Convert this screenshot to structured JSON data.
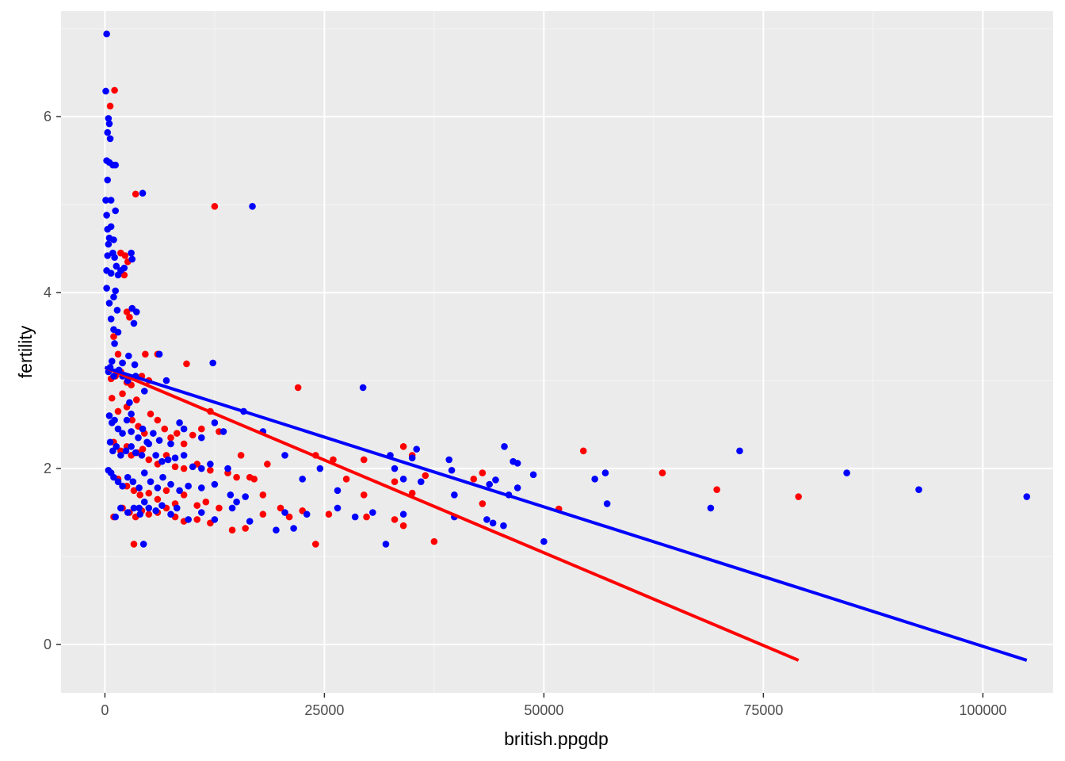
{
  "chart_data": {
    "type": "scatter",
    "xlabel": "british.ppgdp",
    "ylabel": "fertility",
    "xlim": [
      -5000,
      108000
    ],
    "ylim": [
      -0.55,
      7.2
    ],
    "x_ticks": [
      0,
      25000,
      50000,
      75000,
      100000
    ],
    "x_tick_labels": [
      "0",
      "25000",
      "50000",
      "75000",
      "100000"
    ],
    "y_ticks": [
      0,
      2,
      4,
      6
    ],
    "y_tick_labels": [
      "0",
      "2",
      "4",
      "6"
    ],
    "grid": true,
    "legend": "none",
    "series": [
      {
        "color": "#ff0000",
        "points": [
          [
            600,
            6.12
          ],
          [
            1100,
            6.3
          ],
          [
            12500,
            4.98
          ],
          [
            1800,
            4.45
          ],
          [
            2300,
            4.42
          ],
          [
            2600,
            4.35
          ],
          [
            2200,
            4.2
          ],
          [
            2500,
            3.78
          ],
          [
            2800,
            3.72
          ],
          [
            3100,
            3.82
          ],
          [
            1000,
            3.5
          ],
          [
            1500,
            3.3
          ],
          [
            2000,
            3.2
          ],
          [
            3500,
            5.12
          ],
          [
            4600,
            3.3
          ],
          [
            6000,
            3.3
          ],
          [
            9300,
            3.19
          ],
          [
            22000,
            2.92
          ],
          [
            700,
            3.02
          ],
          [
            1200,
            3.05
          ],
          [
            1800,
            3.1
          ],
          [
            2500,
            2.98
          ],
          [
            3000,
            2.95
          ],
          [
            3600,
            2.78
          ],
          [
            4200,
            3.05
          ],
          [
            5000,
            3.0
          ],
          [
            800,
            2.8
          ],
          [
            1500,
            2.65
          ],
          [
            2000,
            2.85
          ],
          [
            2500,
            2.7
          ],
          [
            3100,
            2.55
          ],
          [
            3800,
            2.48
          ],
          [
            4500,
            2.4
          ],
          [
            5200,
            2.62
          ],
          [
            6000,
            2.55
          ],
          [
            6800,
            2.45
          ],
          [
            7500,
            2.35
          ],
          [
            8200,
            2.4
          ],
          [
            9000,
            2.28
          ],
          [
            10000,
            2.38
          ],
          [
            11000,
            2.45
          ],
          [
            12000,
            2.65
          ],
          [
            13000,
            2.42
          ],
          [
            1000,
            2.3
          ],
          [
            1800,
            2.2
          ],
          [
            2500,
            2.25
          ],
          [
            3000,
            2.15
          ],
          [
            3700,
            2.18
          ],
          [
            4300,
            2.22
          ],
          [
            5000,
            2.1
          ],
          [
            6000,
            2.05
          ],
          [
            7000,
            2.15
          ],
          [
            8000,
            2.02
          ],
          [
            9000,
            2.0
          ],
          [
            10500,
            2.05
          ],
          [
            12000,
            1.98
          ],
          [
            14000,
            1.95
          ],
          [
            15500,
            2.15
          ],
          [
            16500,
            1.9
          ],
          [
            18500,
            2.05
          ],
          [
            24000,
            2.15
          ],
          [
            26000,
            2.1
          ],
          [
            29500,
            2.1
          ],
          [
            34000,
            2.25
          ],
          [
            35000,
            2.15
          ],
          [
            36500,
            1.92
          ],
          [
            42000,
            1.88
          ],
          [
            43000,
            1.95
          ],
          [
            54500,
            2.2
          ],
          [
            63500,
            1.95
          ],
          [
            69700,
            1.76
          ],
          [
            1500,
            1.88
          ],
          [
            2500,
            1.8
          ],
          [
            3300,
            1.75
          ],
          [
            4000,
            1.7
          ],
          [
            5000,
            1.72
          ],
          [
            6000,
            1.65
          ],
          [
            7000,
            1.75
          ],
          [
            8000,
            1.6
          ],
          [
            9000,
            1.7
          ],
          [
            10500,
            1.58
          ],
          [
            11500,
            1.62
          ],
          [
            13000,
            1.55
          ],
          [
            15000,
            1.9
          ],
          [
            17000,
            1.88
          ],
          [
            18000,
            1.7
          ],
          [
            20000,
            1.55
          ],
          [
            22500,
            1.52
          ],
          [
            25500,
            1.48
          ],
          [
            27500,
            1.88
          ],
          [
            29500,
            1.7
          ],
          [
            33000,
            1.85
          ],
          [
            35000,
            1.72
          ],
          [
            43000,
            1.6
          ],
          [
            51700,
            1.54
          ],
          [
            79000,
            1.68
          ],
          [
            1000,
            1.45
          ],
          [
            2000,
            1.55
          ],
          [
            2800,
            1.5
          ],
          [
            3500,
            1.45
          ],
          [
            4200,
            1.52
          ],
          [
            5000,
            1.48
          ],
          [
            6000,
            1.5
          ],
          [
            7000,
            1.55
          ],
          [
            8000,
            1.45
          ],
          [
            9000,
            1.4
          ],
          [
            10500,
            1.42
          ],
          [
            12000,
            1.38
          ],
          [
            14500,
            1.3
          ],
          [
            16000,
            1.32
          ],
          [
            18000,
            1.48
          ],
          [
            21000,
            1.45
          ],
          [
            24000,
            1.14
          ],
          [
            29800,
            1.45
          ],
          [
            33000,
            1.42
          ],
          [
            34000,
            1.35
          ],
          [
            37500,
            1.17
          ],
          [
            3300,
            1.14
          ]
        ],
        "fit_line": [
          [
            0,
            3.15
          ],
          [
            79000,
            -0.18
          ]
        ]
      },
      {
        "color": "#0000ff",
        "points": [
          [
            200,
            6.94
          ],
          [
            100,
            6.29
          ],
          [
            400,
            5.98
          ],
          [
            500,
            5.92
          ],
          [
            300,
            5.82
          ],
          [
            600,
            5.75
          ],
          [
            200,
            5.5
          ],
          [
            500,
            5.48
          ],
          [
            900,
            5.45
          ],
          [
            1200,
            5.45
          ],
          [
            4300,
            5.13
          ],
          [
            16800,
            4.98
          ],
          [
            300,
            5.28
          ],
          [
            700,
            5.05
          ],
          [
            100,
            5.05
          ],
          [
            200,
            4.88
          ],
          [
            300,
            4.72
          ],
          [
            500,
            4.62
          ],
          [
            700,
            4.75
          ],
          [
            1000,
            4.6
          ],
          [
            1200,
            4.93
          ],
          [
            400,
            4.55
          ],
          [
            300,
            4.42
          ],
          [
            900,
            4.45
          ],
          [
            1100,
            4.4
          ],
          [
            3100,
            4.38
          ],
          [
            3000,
            4.45
          ],
          [
            200,
            4.25
          ],
          [
            700,
            4.22
          ],
          [
            1300,
            4.3
          ],
          [
            1500,
            4.2
          ],
          [
            1800,
            4.25
          ],
          [
            2200,
            4.28
          ],
          [
            200,
            4.05
          ],
          [
            500,
            3.88
          ],
          [
            1000,
            3.95
          ],
          [
            1200,
            4.02
          ],
          [
            700,
            3.7
          ],
          [
            1400,
            3.8
          ],
          [
            3100,
            3.82
          ],
          [
            3600,
            3.78
          ],
          [
            3300,
            3.65
          ],
          [
            1000,
            3.58
          ],
          [
            1500,
            3.55
          ],
          [
            1100,
            3.42
          ],
          [
            2700,
            3.28
          ],
          [
            2000,
            3.2
          ],
          [
            3400,
            3.18
          ],
          [
            6200,
            3.3
          ],
          [
            12300,
            3.2
          ],
          [
            29400,
            2.92
          ],
          [
            7000,
            3.0
          ],
          [
            400,
            3.1
          ],
          [
            600,
            3.15
          ],
          [
            800,
            3.22
          ],
          [
            1000,
            3.05
          ],
          [
            1300,
            3.1
          ],
          [
            1600,
            3.12
          ],
          [
            2000,
            3.05
          ],
          [
            2600,
            3.0
          ],
          [
            3500,
            3.05
          ],
          [
            4500,
            2.88
          ],
          [
            2800,
            2.75
          ],
          [
            3000,
            2.62
          ],
          [
            15800,
            2.65
          ],
          [
            18000,
            2.42
          ],
          [
            500,
            2.6
          ],
          [
            800,
            2.52
          ],
          [
            1100,
            2.55
          ],
          [
            1500,
            2.45
          ],
          [
            2000,
            2.4
          ],
          [
            2500,
            2.55
          ],
          [
            3000,
            2.42
          ],
          [
            3800,
            2.35
          ],
          [
            4300,
            2.45
          ],
          [
            4800,
            2.3
          ],
          [
            5500,
            2.4
          ],
          [
            6200,
            2.32
          ],
          [
            7500,
            2.28
          ],
          [
            8500,
            2.52
          ],
          [
            9000,
            2.45
          ],
          [
            11000,
            2.35
          ],
          [
            12500,
            2.52
          ],
          [
            13500,
            2.42
          ],
          [
            600,
            2.3
          ],
          [
            900,
            2.2
          ],
          [
            1300,
            2.25
          ],
          [
            1800,
            2.15
          ],
          [
            2400,
            2.2
          ],
          [
            3000,
            2.25
          ],
          [
            3500,
            2.18
          ],
          [
            4200,
            2.15
          ],
          [
            5000,
            2.28
          ],
          [
            5800,
            2.15
          ],
          [
            6500,
            2.08
          ],
          [
            7200,
            2.1
          ],
          [
            8000,
            2.12
          ],
          [
            9000,
            2.15
          ],
          [
            10000,
            2.02
          ],
          [
            11000,
            2.0
          ],
          [
            12000,
            2.05
          ],
          [
            14000,
            2.0
          ],
          [
            20500,
            2.15
          ],
          [
            24500,
            2.0
          ],
          [
            32500,
            2.15
          ],
          [
            35000,
            2.12
          ],
          [
            35500,
            2.22
          ],
          [
            39200,
            2.1
          ],
          [
            45500,
            2.25
          ],
          [
            46500,
            2.08
          ],
          [
            47000,
            2.06
          ],
          [
            48800,
            1.93
          ],
          [
            55800,
            1.88
          ],
          [
            57000,
            1.95
          ],
          [
            72300,
            2.2
          ],
          [
            84500,
            1.95
          ],
          [
            92700,
            1.76
          ],
          [
            105000,
            1.68
          ],
          [
            400,
            1.98
          ],
          [
            700,
            1.95
          ],
          [
            1000,
            1.9
          ],
          [
            1500,
            1.85
          ],
          [
            2000,
            1.8
          ],
          [
            2600,
            1.9
          ],
          [
            3200,
            1.85
          ],
          [
            3900,
            1.78
          ],
          [
            4500,
            1.95
          ],
          [
            5200,
            1.85
          ],
          [
            6000,
            1.78
          ],
          [
            6600,
            1.9
          ],
          [
            7500,
            1.82
          ],
          [
            8500,
            1.75
          ],
          [
            9500,
            1.8
          ],
          [
            11000,
            1.78
          ],
          [
            12500,
            1.82
          ],
          [
            14300,
            1.7
          ],
          [
            16000,
            1.68
          ],
          [
            22500,
            1.88
          ],
          [
            26500,
            1.75
          ],
          [
            33000,
            2.0
          ],
          [
            34000,
            1.88
          ],
          [
            36000,
            1.85
          ],
          [
            39500,
            1.98
          ],
          [
            43800,
            1.82
          ],
          [
            44500,
            1.87
          ],
          [
            47000,
            1.78
          ],
          [
            46000,
            1.7
          ],
          [
            39800,
            1.7
          ],
          [
            1200,
            1.45
          ],
          [
            1800,
            1.55
          ],
          [
            2600,
            1.5
          ],
          [
            3300,
            1.55
          ],
          [
            4000,
            1.48
          ],
          [
            4500,
            1.62
          ],
          [
            5000,
            1.55
          ],
          [
            5800,
            1.52
          ],
          [
            6500,
            1.58
          ],
          [
            7500,
            1.48
          ],
          [
            8200,
            1.55
          ],
          [
            9500,
            1.42
          ],
          [
            11000,
            1.5
          ],
          [
            12500,
            1.42
          ],
          [
            14500,
            1.55
          ],
          [
            15000,
            1.62
          ],
          [
            16500,
            1.4
          ],
          [
            19500,
            1.3
          ],
          [
            20500,
            1.5
          ],
          [
            21500,
            1.32
          ],
          [
            23000,
            1.48
          ],
          [
            26500,
            1.55
          ],
          [
            28500,
            1.45
          ],
          [
            30500,
            1.5
          ],
          [
            32000,
            1.14
          ],
          [
            34000,
            1.48
          ],
          [
            39800,
            1.45
          ],
          [
            43500,
            1.42
          ],
          [
            44200,
            1.38
          ],
          [
            45400,
            1.35
          ],
          [
            50000,
            1.17
          ],
          [
            57200,
            1.6
          ],
          [
            69000,
            1.55
          ],
          [
            4400,
            1.14
          ],
          [
            3900,
            1.55
          ]
        ],
        "fit_line": [
          [
            0,
            3.15
          ],
          [
            105000,
            -0.18
          ]
        ]
      }
    ]
  }
}
